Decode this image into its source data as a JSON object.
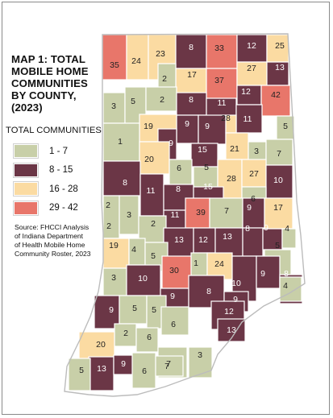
{
  "map": {
    "title_lines": [
      "MAP 1: TOTAL",
      "MOBILE HOME",
      "COMMUNITIES",
      "BY COUNTY,",
      "(2023)"
    ],
    "legend_title": "TOTAL COMMUNITIES",
    "legend": [
      {
        "label": "1 - 7",
        "color": "#c8cfa8"
      },
      {
        "label": "8 - 15",
        "color": "#6b3646"
      },
      {
        "label": "16 - 28",
        "color": "#fbdba2"
      },
      {
        "label": "29 - 42",
        "color": "#e8766a"
      }
    ],
    "source_lines": [
      "Source: FHCCI Analysis",
      "of Indiana Department",
      "of Health Mobile Home",
      "Community Roster, 2023"
    ],
    "state_outline_color": "#bcbcbc",
    "county_values": [
      35,
      24,
      23,
      8,
      33,
      12,
      25,
      17,
      37,
      27,
      13,
      2,
      12,
      42,
      3,
      5,
      2,
      8,
      11,
      11,
      9,
      5,
      19,
      9,
      28,
      1,
      9,
      21,
      15,
      3,
      7,
      20,
      6,
      5,
      28,
      27,
      10,
      8,
      11,
      8,
      15,
      6,
      2,
      3,
      11,
      39,
      7,
      9,
      17,
      2,
      2,
      13,
      12,
      13,
      8,
      9,
      4,
      19,
      4,
      5,
      5,
      30,
      1,
      24,
      3,
      10,
      9,
      8,
      10,
      9,
      8,
      4,
      9,
      5,
      5,
      9,
      12,
      13,
      2,
      6,
      6,
      20,
      7,
      3,
      13,
      9,
      6,
      7,
      5
    ]
  }
}
